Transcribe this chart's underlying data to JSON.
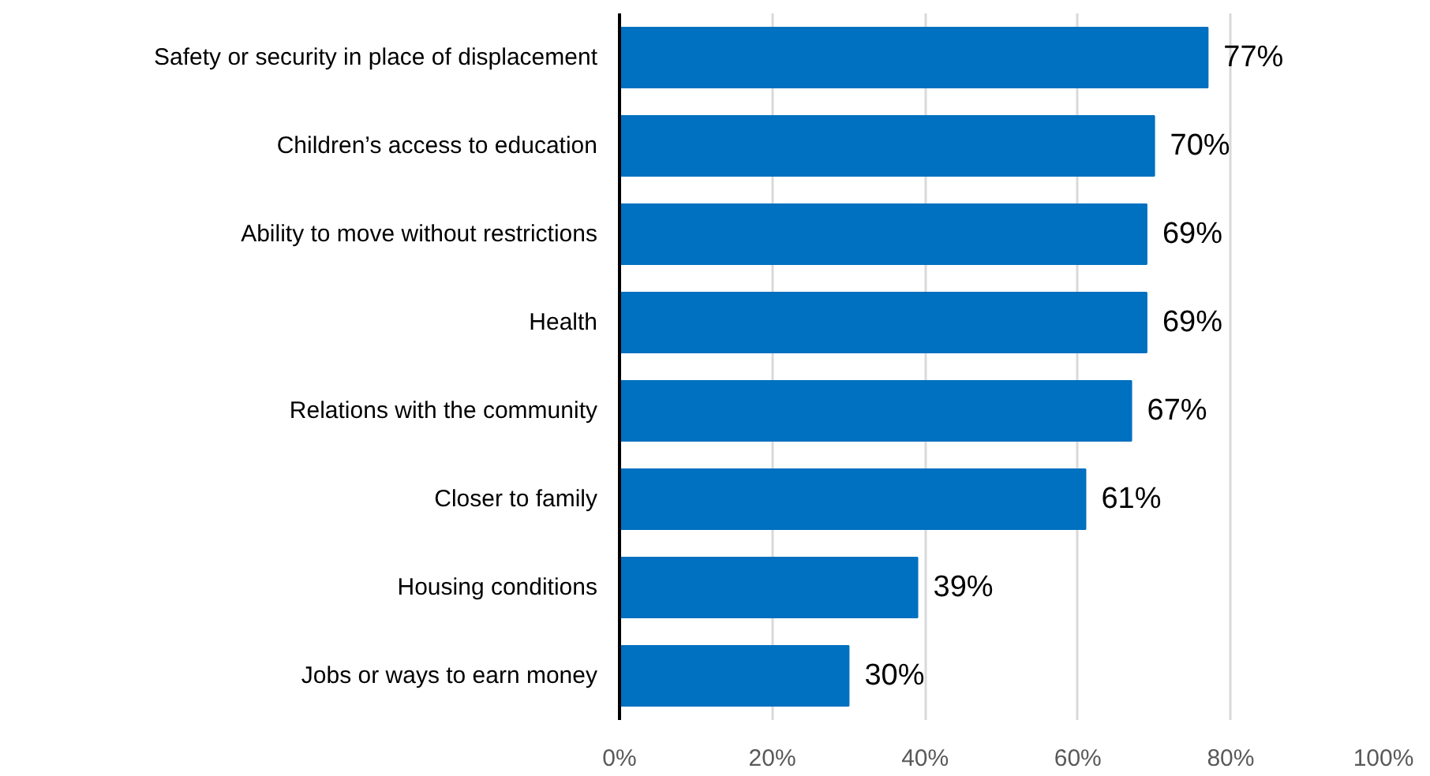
{
  "chart_data": {
    "type": "bar",
    "orientation": "horizontal",
    "categories": [
      "Safety or security in place of displacement",
      "Children’s access to education",
      "Ability to move without restrictions",
      "Health",
      "Relations with the community",
      "Closer to family",
      "Housing conditions",
      "Jobs or ways to earn money"
    ],
    "values": [
      77,
      70,
      69,
      69,
      67,
      61,
      39,
      30
    ],
    "value_labels": [
      "77%",
      "70%",
      "69%",
      "69%",
      "67%",
      "61%",
      "39%",
      "30%"
    ],
    "color": "#0070c0",
    "xlim": [
      0,
      100
    ],
    "xticks": [
      {
        "value": 0,
        "label": "0%"
      },
      {
        "value": 20,
        "label": "20%"
      },
      {
        "value": 40,
        "label": "40%"
      },
      {
        "value": 60,
        "label": "60%"
      },
      {
        "value": 80,
        "label": "80%"
      },
      {
        "value": 100,
        "label": "100%"
      }
    ],
    "grid": "x"
  }
}
